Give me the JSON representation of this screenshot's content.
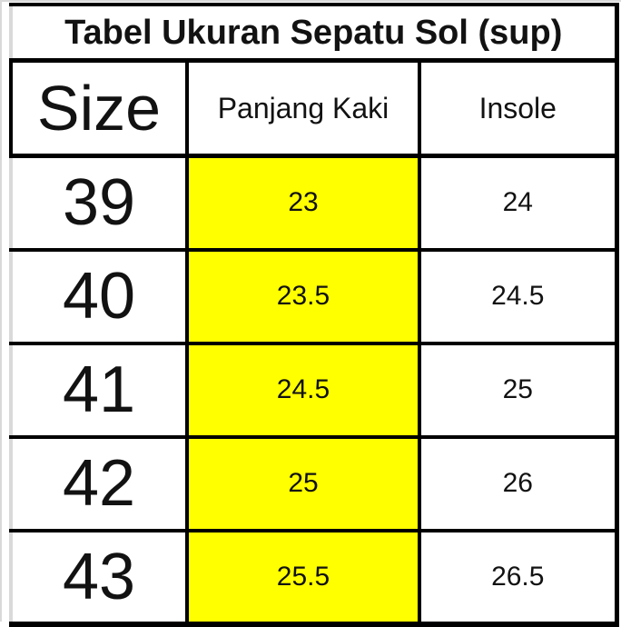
{
  "chart_data": {
    "type": "table",
    "title": "Tabel Ukuran Sepatu Sol (sup)",
    "columns": [
      "Size",
      "Panjang Kaki",
      "Insole"
    ],
    "rows": [
      [
        "39",
        "23",
        "24"
      ],
      [
        "40",
        "23.5",
        "24.5"
      ],
      [
        "41",
        "24.5",
        "25"
      ],
      [
        "42",
        "25",
        "26"
      ],
      [
        "43",
        "25.5",
        "26.5"
      ]
    ],
    "highlighted_column": "Panjang Kaki",
    "highlight_color": "#ffff00",
    "border_color": "#000000",
    "text_color": "#121212",
    "background_color": "#ffffff",
    "grid": true,
    "legend_position": "none"
  }
}
